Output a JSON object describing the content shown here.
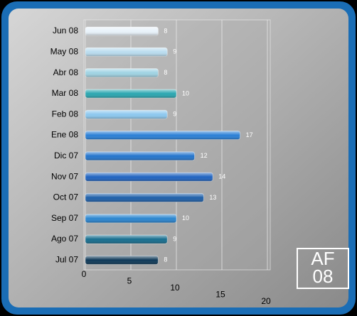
{
  "chart_data": {
    "type": "bar",
    "orientation": "horizontal",
    "categories": [
      "Jun 08",
      "May 08",
      "Abr 08",
      "Mar 08",
      "Feb 08",
      "Ene 08",
      "Dic 07",
      "Nov 07",
      "Oct 07",
      "Sep 07",
      "Ago 07",
      "Jul 07"
    ],
    "values": [
      8,
      9,
      8,
      10,
      9,
      17,
      12,
      14,
      13,
      10,
      9,
      8
    ],
    "colors": [
      "#e8f2fa",
      "#b9dcef",
      "#9fd3e3",
      "#2aa6b0",
      "#8cc8ef",
      "#2a7fd6",
      "#2374cc",
      "#1f63c0",
      "#1d5ea8",
      "#2a85cf",
      "#166d8e",
      "#0d3857"
    ],
    "xlim": [
      0,
      20
    ],
    "xticks": [
      0,
      5,
      10,
      15,
      20
    ],
    "grid": true,
    "annotations": [
      "AF",
      "08"
    ]
  }
}
